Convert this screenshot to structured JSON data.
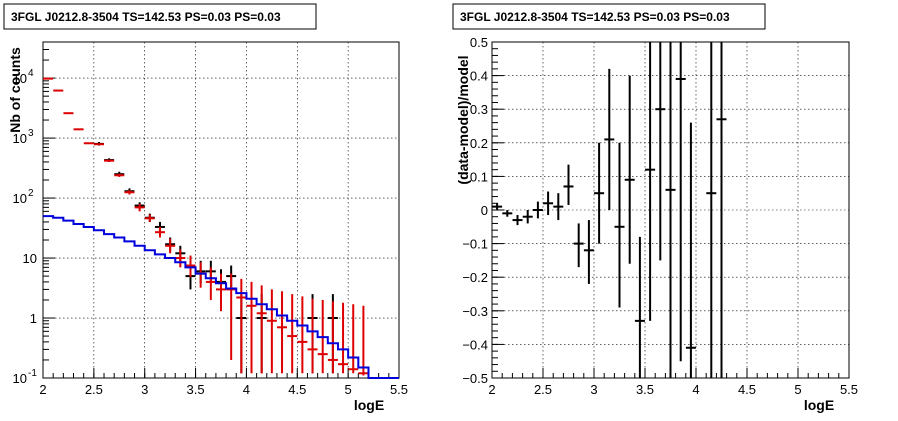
{
  "chart_data": [
    {
      "type": "scatter",
      "title": "3FGL J0212.8-3504 TS=142.53 PS=0.03 PS=0.03",
      "xlabel": "logE",
      "ylabel": "Nb of counts",
      "xlim": [
        2,
        5.5
      ],
      "ylim": [
        0.1,
        40000
      ],
      "yscale": "log",
      "grid": true,
      "x_ticks": [
        "2",
        "2.5",
        "3",
        "3.5",
        "4",
        "4.5",
        "5",
        "5.5"
      ],
      "y_ticks": [
        {
          "label": "10",
          "exp": "-1",
          "value": 0.1
        },
        {
          "label": "1",
          "exp": "",
          "value": 1
        },
        {
          "label": "10",
          "exp": "",
          "value": 10
        },
        {
          "label": "10",
          "exp": "2",
          "value": 100
        },
        {
          "label": "10",
          "exp": "3",
          "value": 1000
        },
        {
          "label": "10",
          "exp": "4",
          "value": 10000
        }
      ],
      "series": [
        {
          "role": "data",
          "color": "#000000",
          "points": [
            {
              "x": 2.55,
              "y": 800,
              "lo": 750,
              "hi": 860
            },
            {
              "x": 2.65,
              "y": 430,
              "lo": 400,
              "hi": 460
            },
            {
              "x": 2.75,
              "y": 250,
              "lo": 230,
              "hi": 275
            },
            {
              "x": 2.85,
              "y": 130,
              "lo": 115,
              "hi": 145
            },
            {
              "x": 2.95,
              "y": 75,
              "lo": 65,
              "hi": 85
            },
            {
              "x": 3.05,
              "y": 47,
              "lo": 40,
              "hi": 55
            },
            {
              "x": 3.15,
              "y": 33,
              "lo": 27,
              "hi": 40
            },
            {
              "x": 3.25,
              "y": 17,
              "lo": 13,
              "hi": 22
            },
            {
              "x": 3.35,
              "y": 12,
              "lo": 8.5,
              "hi": 16
            },
            {
              "x": 3.45,
              "y": 5,
              "lo": 3,
              "hi": 7.5
            },
            {
              "x": 3.55,
              "y": 6,
              "lo": 3.8,
              "hi": 9
            },
            {
              "x": 3.65,
              "y": 6,
              "lo": 3.8,
              "hi": 9
            },
            {
              "x": 3.75,
              "y": 4,
              "lo": 2.2,
              "hi": 6.5
            },
            {
              "x": 3.85,
              "y": 5,
              "lo": 3,
              "hi": 7.5
            },
            {
              "x": 3.95,
              "y": 1,
              "lo": 0.12,
              "hi": 2.5
            },
            {
              "x": 4.15,
              "y": 1,
              "lo": 0.12,
              "hi": 2.5
            },
            {
              "x": 4.65,
              "y": 1,
              "lo": 0.12,
              "hi": 2.5
            },
            {
              "x": 4.85,
              "y": 1,
              "lo": 0.12,
              "hi": 2.5
            }
          ]
        },
        {
          "role": "model",
          "color": "#dd0000",
          "points": [
            {
              "x": 2.05,
              "y": 9800,
              "lo": 9600,
              "hi": 10000
            },
            {
              "x": 2.15,
              "y": 6200,
              "lo": 6100,
              "hi": 6300
            },
            {
              "x": 2.25,
              "y": 2600,
              "lo": 2550,
              "hi": 2650
            },
            {
              "x": 2.35,
              "y": 1400,
              "lo": 1380,
              "hi": 1420
            },
            {
              "x": 2.45,
              "y": 820,
              "lo": 810,
              "hi": 830
            },
            {
              "x": 2.55,
              "y": 790,
              "lo": 760,
              "hi": 820
            },
            {
              "x": 2.65,
              "y": 420,
              "lo": 400,
              "hi": 440
            },
            {
              "x": 2.75,
              "y": 240,
              "lo": 225,
              "hi": 255
            },
            {
              "x": 2.85,
              "y": 125,
              "lo": 115,
              "hi": 135
            },
            {
              "x": 2.95,
              "y": 70,
              "lo": 60,
              "hi": 80
            },
            {
              "x": 3.05,
              "y": 46,
              "lo": 40,
              "hi": 53
            },
            {
              "x": 3.15,
              "y": 27,
              "lo": 22,
              "hi": 33
            },
            {
              "x": 3.25,
              "y": 16,
              "lo": 12,
              "hi": 21
            },
            {
              "x": 3.35,
              "y": 10,
              "lo": 7,
              "hi": 14
            },
            {
              "x": 3.45,
              "y": 7.5,
              "lo": 4.8,
              "hi": 11
            },
            {
              "x": 3.55,
              "y": 5.5,
              "lo": 3.2,
              "hi": 8.5
            },
            {
              "x": 3.65,
              "y": 4,
              "lo": 2,
              "hi": 7
            },
            {
              "x": 3.75,
              "y": 3,
              "lo": 1.3,
              "hi": 5.5
            },
            {
              "x": 3.85,
              "y": 3,
              "lo": 0.2,
              "hi": 5.5
            },
            {
              "x": 3.95,
              "y": 2.2,
              "lo": 0.12,
              "hi": 4.5
            },
            {
              "x": 4.05,
              "y": 1.6,
              "lo": 0.12,
              "hi": 4
            },
            {
              "x": 4.15,
              "y": 1.2,
              "lo": 0.12,
              "hi": 3.5
            },
            {
              "x": 4.25,
              "y": 0.9,
              "lo": 0.12,
              "hi": 3
            },
            {
              "x": 4.35,
              "y": 0.7,
              "lo": 0.12,
              "hi": 2.8
            },
            {
              "x": 4.45,
              "y": 0.5,
              "lo": 0.12,
              "hi": 2.5
            },
            {
              "x": 4.55,
              "y": 0.4,
              "lo": 0.12,
              "hi": 2.3
            },
            {
              "x": 4.65,
              "y": 0.3,
              "lo": 0.12,
              "hi": 2.1
            },
            {
              "x": 4.75,
              "y": 0.25,
              "lo": 0.12,
              "hi": 2
            },
            {
              "x": 4.85,
              "y": 0.2,
              "lo": 0.12,
              "hi": 1.9
            },
            {
              "x": 4.95,
              "y": 0.17,
              "lo": 0.12,
              "hi": 1.8
            },
            {
              "x": 5.05,
              "y": 0.14,
              "lo": 0.12,
              "hi": 1.7
            },
            {
              "x": 5.15,
              "y": 0.12,
              "lo": 0.11,
              "hi": 1.6
            }
          ]
        },
        {
          "role": "background",
          "color": "#0000dd",
          "step": true,
          "edges": [
            2,
            2.1,
            2.2,
            2.3,
            2.4,
            2.5,
            2.6,
            2.7,
            2.8,
            2.9,
            3.0,
            3.1,
            3.2,
            3.3,
            3.4,
            3.5,
            3.6,
            3.7,
            3.8,
            3.9,
            4.0,
            4.1,
            4.2,
            4.3,
            4.4,
            4.5,
            4.6,
            4.7,
            4.8,
            4.9,
            5.0,
            5.1,
            5.2,
            5.5
          ],
          "values": [
            50,
            47,
            42,
            37,
            33,
            29,
            25,
            22,
            19,
            16,
            13.5,
            11.5,
            10,
            8.5,
            7,
            5.5,
            4.6,
            3.8,
            3.1,
            2.6,
            2.1,
            1.7,
            1.4,
            1.1,
            0.9,
            0.75,
            0.6,
            0.48,
            0.38,
            0.3,
            0.22,
            0.15,
            0.1
          ]
        }
      ]
    },
    {
      "type": "scatter",
      "title": "3FGL J0212.8-3504 TS=142.53 PS=0.03 PS=0.03",
      "xlabel": "logE",
      "ylabel": "(data-model)/model",
      "xlim": [
        2,
        5.5
      ],
      "ylim": [
        -0.5,
        0.5
      ],
      "grid": true,
      "x_ticks": [
        "2",
        "2.5",
        "3",
        "3.5",
        "4",
        "4.5",
        "5",
        "5.5"
      ],
      "y_ticks": [
        "−0.5",
        "−0.4",
        "−0.3",
        "−0.2",
        "−0.1",
        "0",
        "0.1",
        "0.2",
        "0.3",
        "0.4",
        "0.5"
      ],
      "series": [
        {
          "role": "residual",
          "color": "#000000",
          "points": [
            {
              "x": 2.05,
              "y": 0.01,
              "lo": 0.0,
              "hi": 0.02
            },
            {
              "x": 2.15,
              "y": -0.01,
              "lo": -0.02,
              "hi": 0.0
            },
            {
              "x": 2.25,
              "y": -0.03,
              "lo": -0.045,
              "hi": -0.015
            },
            {
              "x": 2.35,
              "y": -0.02,
              "lo": -0.04,
              "hi": 0.0
            },
            {
              "x": 2.45,
              "y": 0.0,
              "lo": -0.025,
              "hi": 0.025
            },
            {
              "x": 2.55,
              "y": 0.02,
              "lo": -0.015,
              "hi": 0.055
            },
            {
              "x": 2.65,
              "y": 0.01,
              "lo": -0.03,
              "hi": 0.05
            },
            {
              "x": 2.75,
              "y": 0.07,
              "lo": 0.015,
              "hi": 0.135
            },
            {
              "x": 2.85,
              "y": -0.1,
              "lo": -0.17,
              "hi": -0.04
            },
            {
              "x": 2.95,
              "y": -0.12,
              "lo": -0.22,
              "hi": -0.03
            },
            {
              "x": 3.05,
              "y": 0.05,
              "lo": -0.1,
              "hi": 0.2
            },
            {
              "x": 3.15,
              "y": 0.21,
              "lo": 0.0,
              "hi": 0.42
            },
            {
              "x": 3.25,
              "y": -0.05,
              "lo": -0.29,
              "hi": 0.2
            },
            {
              "x": 3.35,
              "y": 0.09,
              "lo": -0.16,
              "hi": 0.4
            },
            {
              "x": 3.45,
              "y": -0.33,
              "lo": -0.5,
              "hi": -0.08
            },
            {
              "x": 3.55,
              "y": 0.12,
              "lo": -0.33,
              "hi": 0.5
            },
            {
              "x": 3.65,
              "y": 0.3,
              "lo": -0.15,
              "hi": 0.5
            },
            {
              "x": 3.75,
              "y": 0.06,
              "lo": -0.5,
              "hi": 0.5
            },
            {
              "x": 3.85,
              "y": 0.39,
              "lo": -0.45,
              "hi": 0.5
            },
            {
              "x": 3.95,
              "y": -0.41,
              "lo": -0.5,
              "hi": 0.26
            },
            {
              "x": 4.15,
              "y": 0.05,
              "lo": -0.5,
              "hi": 0.5
            },
            {
              "x": 4.25,
              "y": 0.27,
              "lo": -0.5,
              "hi": 0.5
            }
          ]
        }
      ]
    }
  ]
}
